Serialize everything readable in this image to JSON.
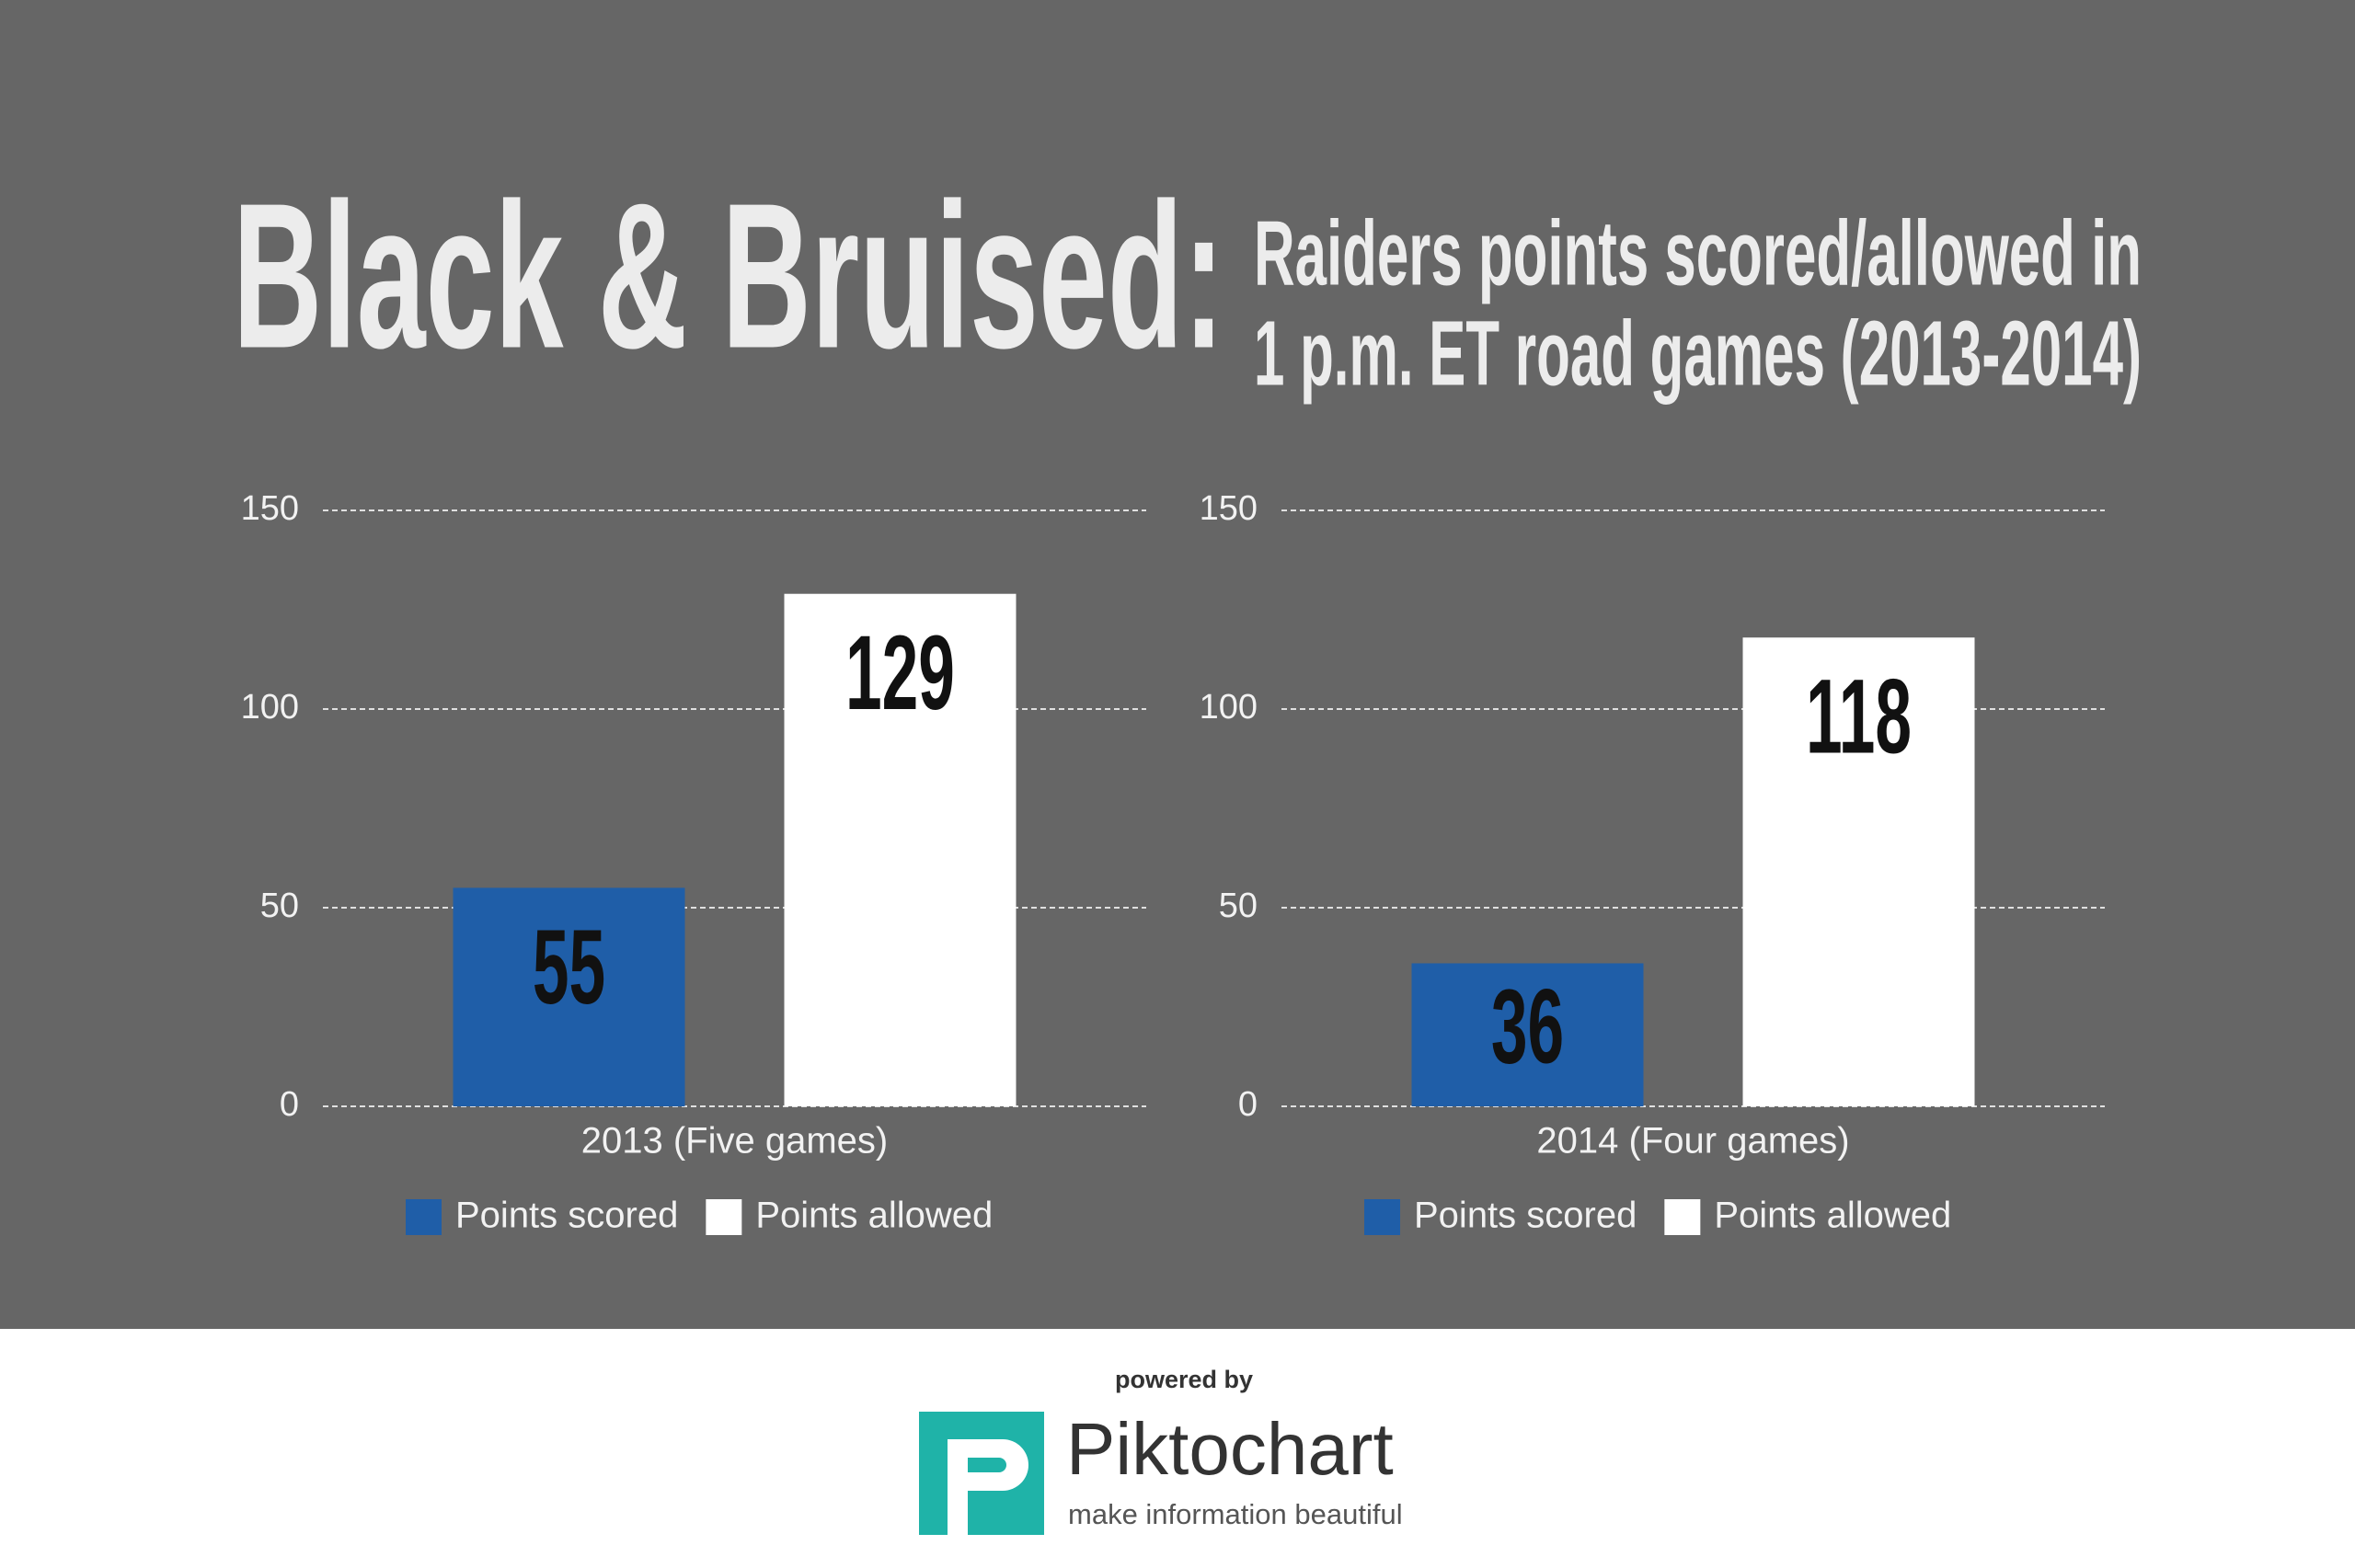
{
  "header": {
    "title": "Black & Bruised:",
    "subtitle": [
      "Raiders points scored/allowed in",
      "1 p.m. ET road games (2013-2014)"
    ]
  },
  "chart_data": [
    {
      "type": "bar",
      "categories": [
        "2013 (Five games)"
      ],
      "series": [
        {
          "name": "Points scored",
          "color": "#1f5ea8",
          "values": [
            55
          ]
        },
        {
          "name": "Points allowed",
          "color": "#ffffff",
          "values": [
            129
          ]
        }
      ],
      "ylim": [
        0,
        150
      ],
      "yticks": [
        0,
        50,
        100,
        150
      ],
      "grid": true
    },
    {
      "type": "bar",
      "categories": [
        "2014 (Four games)"
      ],
      "series": [
        {
          "name": "Points scored",
          "color": "#1f5ea8",
          "values": [
            36
          ]
        },
        {
          "name": "Points allowed",
          "color": "#ffffff",
          "values": [
            118
          ]
        }
      ],
      "ylim": [
        0,
        150
      ],
      "yticks": [
        0,
        50,
        100,
        150
      ],
      "grid": true
    }
  ],
  "footer": {
    "powered": "powered by",
    "brand": "Piktochart",
    "tagline": "make information beautiful"
  }
}
